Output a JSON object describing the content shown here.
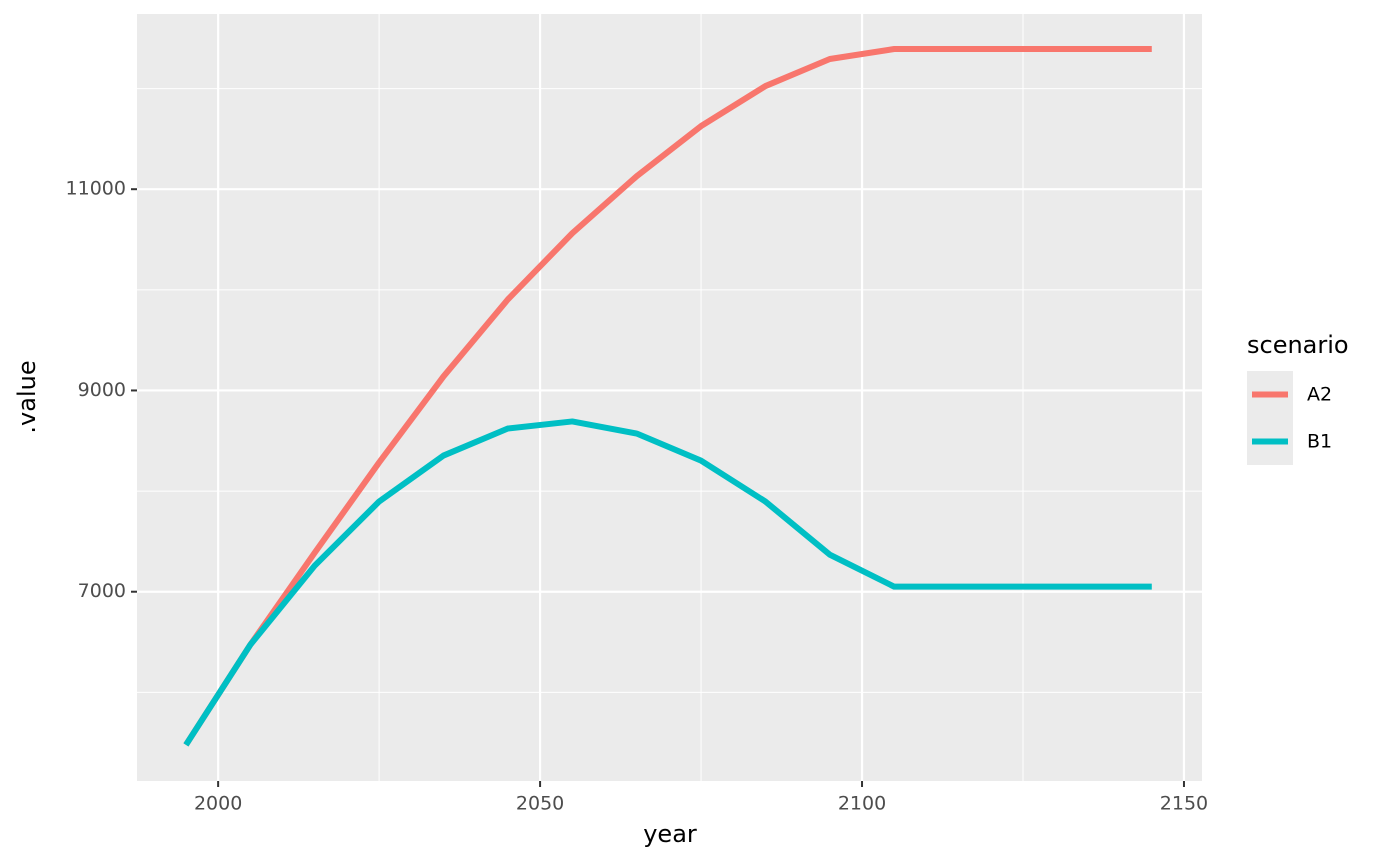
{
  "chart_data": {
    "type": "line",
    "x_label": "year",
    "y_label": ".value",
    "x": [
      1995,
      2005,
      2015,
      2025,
      2035,
      2045,
      2055,
      2065,
      2075,
      2085,
      2095,
      2105,
      2115,
      2125,
      2135,
      2145
    ],
    "series": [
      {
        "name": "A2",
        "color": "#f8766d",
        "values": [
          5478,
          6473,
          7388,
          8284,
          9139,
          9905,
          10562,
          11129,
          11627,
          12025,
          12294,
          12393,
          12393,
          12393,
          12393,
          12393
        ]
      },
      {
        "name": "B1",
        "color": "#00bfc4",
        "values": [
          5478,
          6473,
          7259,
          7896,
          8353,
          8622,
          8692,
          8572,
          8303,
          7896,
          7368,
          7050,
          7050,
          7050,
          7050,
          7050
        ]
      }
    ],
    "legend_title": "scenario",
    "xlim": [
      1987.4,
      2152.8
    ],
    "xticks": [
      2000,
      2050,
      2100,
      2150
    ],
    "ylim": [
      5119,
      12741
    ],
    "yticks": [
      7000,
      9000,
      11000
    ],
    "grid": true
  }
}
